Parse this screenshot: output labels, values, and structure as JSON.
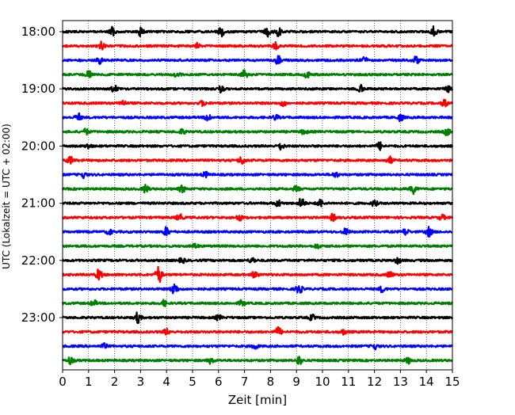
{
  "chart_data": {
    "type": "line",
    "subtype": "helicorder",
    "xlabel": "Zeit  [min]",
    "ylabel": "UTC (Lokalzeit = UTC + 02:00)",
    "xlim": [
      0,
      15
    ],
    "x_ticks": [
      0,
      1,
      2,
      3,
      4,
      5,
      6,
      7,
      8,
      9,
      10,
      11,
      12,
      13,
      14,
      15
    ],
    "y_ticks": [
      "18:00",
      "19:00",
      "20:00",
      "21:00",
      "22:00",
      "23:00"
    ],
    "grid": "vertical dotted at each minute",
    "line_colors": [
      "#000000",
      "#ff0000",
      "#0000ff",
      "#008000"
    ],
    "traces": [
      {
        "start": "18:00",
        "color": "#000000",
        "bursts": [
          [
            1.9,
            1.0
          ],
          [
            3.0,
            1.0
          ],
          [
            6.1,
            1.1
          ],
          [
            7.9,
            1.1
          ],
          [
            8.3,
            1.3
          ],
          [
            14.3,
            1.3
          ]
        ]
      },
      {
        "start": "18:15",
        "color": "#ff0000",
        "bursts": [
          [
            1.5,
            1.0
          ],
          [
            5.2,
            0.7
          ],
          [
            8.2,
            0.8
          ]
        ]
      },
      {
        "start": "18:30",
        "color": "#0000ff",
        "bursts": [
          [
            1.4,
            0.8
          ],
          [
            8.3,
            1.0
          ],
          [
            11.6,
            0.9
          ],
          [
            13.6,
            0.9
          ]
        ]
      },
      {
        "start": "18:45",
        "color": "#008000",
        "bursts": [
          [
            1.0,
            0.8
          ],
          [
            4.4,
            0.6
          ],
          [
            7.0,
            1.0
          ],
          [
            9.4,
            0.7
          ]
        ]
      },
      {
        "start": "19:00",
        "color": "#000000",
        "bursts": [
          [
            2.0,
            0.8
          ],
          [
            6.1,
            0.8
          ],
          [
            11.5,
            1.0
          ],
          [
            14.8,
            0.8
          ]
        ]
      },
      {
        "start": "19:15",
        "color": "#ff0000",
        "bursts": [
          [
            2.3,
            0.7
          ],
          [
            5.4,
            0.6
          ],
          [
            8.5,
            0.7
          ],
          [
            14.7,
            0.8
          ]
        ]
      },
      {
        "start": "19:30",
        "color": "#0000ff",
        "bursts": [
          [
            0.6,
            0.9
          ],
          [
            5.6,
            1.0
          ],
          [
            8.2,
            0.6
          ],
          [
            13.0,
            0.8
          ]
        ]
      },
      {
        "start": "19:45",
        "color": "#008000",
        "bursts": [
          [
            0.9,
            0.7
          ],
          [
            4.6,
            0.6
          ],
          [
            9.3,
            0.7
          ],
          [
            14.8,
            0.9
          ]
        ]
      },
      {
        "start": "20:00",
        "color": "#000000",
        "bursts": [
          [
            1.0,
            0.6
          ],
          [
            8.4,
            0.8
          ],
          [
            12.2,
            0.9
          ]
        ]
      },
      {
        "start": "20:15",
        "color": "#ff0000",
        "bursts": [
          [
            0.3,
            0.9
          ],
          [
            6.9,
            1.0
          ],
          [
            12.6,
            0.8
          ]
        ]
      },
      {
        "start": "20:30",
        "color": "#0000ff",
        "bursts": [
          [
            0.8,
            0.7
          ],
          [
            5.5,
            0.6
          ],
          [
            10.5,
            0.6
          ]
        ]
      },
      {
        "start": "20:45",
        "color": "#008000",
        "bursts": [
          [
            3.2,
            1.0
          ],
          [
            4.6,
            0.8
          ],
          [
            9.0,
            0.7
          ],
          [
            13.5,
            1.1
          ]
        ]
      },
      {
        "start": "21:00",
        "color": "#000000",
        "bursts": [
          [
            8.3,
            0.8
          ],
          [
            9.2,
            1.4
          ],
          [
            9.9,
            1.0
          ],
          [
            12.0,
            0.7
          ]
        ]
      },
      {
        "start": "21:15",
        "color": "#ff0000",
        "bursts": [
          [
            4.5,
            0.8
          ],
          [
            6.8,
            0.7
          ],
          [
            10.4,
            0.8
          ],
          [
            14.6,
            0.6
          ]
        ]
      },
      {
        "start": "21:30",
        "color": "#0000ff",
        "bursts": [
          [
            1.8,
            0.6
          ],
          [
            4.0,
            1.1
          ],
          [
            10.9,
            0.8
          ],
          [
            13.2,
            0.8
          ],
          [
            14.1,
            1.1
          ]
        ]
      },
      {
        "start": "21:45",
        "color": "#008000",
        "bursts": [
          [
            5.1,
            0.6
          ],
          [
            9.8,
            0.5
          ]
        ]
      },
      {
        "start": "22:00",
        "color": "#000000",
        "bursts": [
          [
            4.6,
            0.6
          ],
          [
            7.3,
            0.7
          ],
          [
            12.9,
            0.7
          ]
        ]
      },
      {
        "start": "22:15",
        "color": "#ff0000",
        "bursts": [
          [
            1.4,
            1.3
          ],
          [
            3.7,
            2.2
          ],
          [
            7.4,
            0.8
          ],
          [
            12.6,
            0.7
          ]
        ]
      },
      {
        "start": "22:30",
        "color": "#0000ff",
        "bursts": [
          [
            4.3,
            1.5
          ],
          [
            9.1,
            1.2
          ],
          [
            12.3,
            0.7
          ]
        ]
      },
      {
        "start": "22:45",
        "color": "#008000",
        "bursts": [
          [
            1.2,
            0.7
          ],
          [
            3.9,
            0.7
          ],
          [
            6.9,
            0.7
          ]
        ]
      },
      {
        "start": "23:00",
        "color": "#000000",
        "bursts": [
          [
            2.9,
            1.3
          ],
          [
            6.0,
            0.6
          ],
          [
            9.6,
            0.7
          ]
        ]
      },
      {
        "start": "23:15",
        "color": "#ff0000",
        "bursts": [
          [
            4.0,
            0.7
          ],
          [
            8.3,
            1.1
          ],
          [
            10.8,
            0.6
          ]
        ]
      },
      {
        "start": "23:30",
        "color": "#0000ff",
        "bursts": [
          [
            1.6,
            0.6
          ],
          [
            7.4,
            0.7
          ],
          [
            12.0,
            0.7
          ]
        ]
      },
      {
        "start": "23:45",
        "color": "#008000",
        "bursts": [
          [
            0.3,
            1.0
          ],
          [
            5.7,
            0.7
          ],
          [
            9.1,
            1.0
          ],
          [
            13.3,
            0.7
          ]
        ]
      }
    ]
  }
}
